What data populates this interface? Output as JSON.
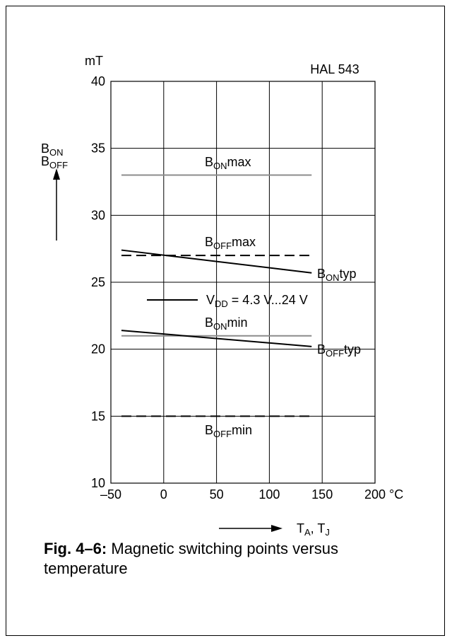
{
  "chart_data": {
    "type": "line",
    "title": "HAL 543",
    "y_unit": "mT",
    "x_unit": "°C",
    "ylabel": "B_ON B_OFF",
    "xlabel": "T_A, T_J",
    "xlim": [
      -50,
      200
    ],
    "ylim": [
      10,
      40
    ],
    "x_ticks": [
      "–50",
      "0",
      "50",
      "100",
      "150",
      "200"
    ],
    "y_ticks": [
      "10",
      "15",
      "20",
      "25",
      "30",
      "35",
      "40"
    ],
    "grid": true,
    "condition_label": "V_DD = 4.3 V...24 V",
    "series": [
      {
        "name": "B_ON max",
        "style": "solid-gray",
        "x": [
          -40,
          140
        ],
        "y": [
          33.0,
          33.0
        ]
      },
      {
        "name": "B_OFF max",
        "style": "dashed",
        "x": [
          -40,
          140
        ],
        "y": [
          27.0,
          27.0
        ]
      },
      {
        "name": "B_ON typ",
        "style": "solid",
        "x": [
          -40,
          140
        ],
        "y": [
          27.4,
          25.7
        ]
      },
      {
        "name": "B_ON min",
        "style": "solid-gray",
        "x": [
          -40,
          140
        ],
        "y": [
          21.0,
          21.0
        ]
      },
      {
        "name": "B_OFF typ",
        "style": "solid",
        "x": [
          -40,
          140
        ],
        "y": [
          21.4,
          20.2
        ]
      },
      {
        "name": "B_OFF min",
        "style": "dashed",
        "x": [
          -40,
          140
        ],
        "y": [
          15.0,
          15.0
        ]
      }
    ]
  },
  "caption": {
    "bold": "Fig. 4–6:",
    "text": " Magnetic switching points versus temperature"
  }
}
